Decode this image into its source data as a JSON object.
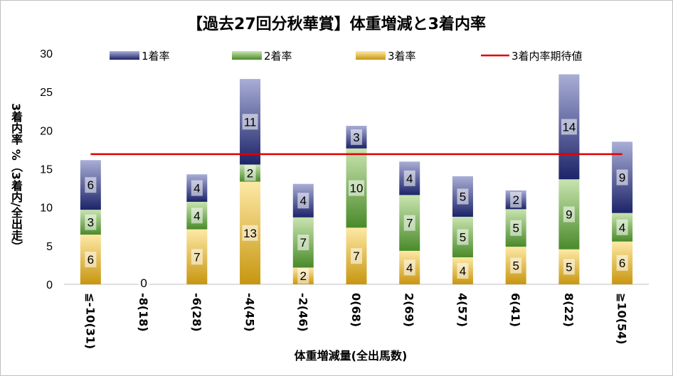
{
  "chart_data": {
    "type": "bar",
    "stacked": true,
    "title": "【過去27回分秋華賞】体重増減と3着内率",
    "xlabel": "体重増減量(全出馬数)",
    "ylabel": "3着内率 %（3着内/全出走）",
    "ylim": [
      0,
      30
    ],
    "yticks": [
      0,
      5,
      10,
      15,
      20,
      25,
      30
    ],
    "grid": false,
    "legend_position": "top",
    "categories": [
      "≦-10(31)",
      "-8(18)",
      "-6(28)",
      "-4(45)",
      "-2(46)",
      "0(68)",
      "2(69)",
      "4(57)",
      "6(41)",
      "8(22)",
      "≧10(54)"
    ],
    "totals": [
      31,
      18,
      28,
      45,
      46,
      68,
      69,
      57,
      41,
      22,
      54
    ],
    "series": [
      {
        "name": "3着率",
        "counts": [
          2,
          0,
          2,
          6,
          1,
          5,
          3,
          2,
          2,
          1,
          3
        ],
        "labels": [
          "6",
          "0",
          "7",
          "13",
          "2",
          "7",
          "4",
          "4",
          "5",
          "5",
          "6"
        ],
        "color_light": "#fde9a6",
        "color_dark": "#c8960f"
      },
      {
        "name": "2着率",
        "counts": [
          1,
          0,
          1,
          1,
          3,
          7,
          5,
          3,
          2,
          2,
          2
        ],
        "labels": [
          "3",
          "",
          "4",
          "2",
          "7",
          "10",
          "7",
          "5",
          "5",
          "9",
          "4"
        ],
        "color_light": "#c9e4b0",
        "color_dark": "#4a8a2a"
      },
      {
        "name": "1着率",
        "counts": [
          2,
          0,
          1,
          5,
          2,
          2,
          3,
          3,
          1,
          3,
          5
        ],
        "labels": [
          "6",
          "",
          "4",
          "11",
          "4",
          "3",
          "4",
          "5",
          "2",
          "14",
          "9"
        ],
        "color_light": "#a9aed6",
        "color_dark": "#1d2469"
      }
    ],
    "reference_line": {
      "name": "3着内率期待値",
      "value": 16.9,
      "color": "#e00000"
    }
  }
}
